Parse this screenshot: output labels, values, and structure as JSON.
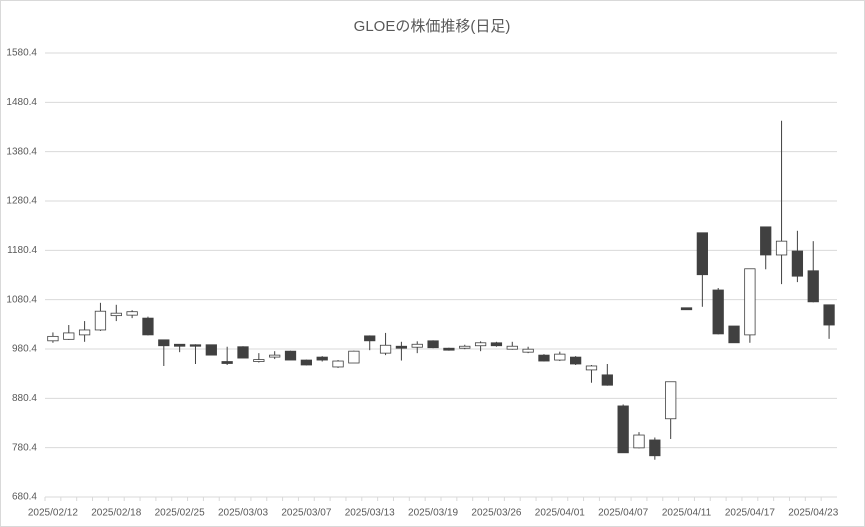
{
  "chart_data": {
    "type": "candlestick",
    "title": "GLOEの株価推移(日足)",
    "categories": [
      "2025/02/12",
      null,
      null,
      null,
      "2025/02/18",
      null,
      null,
      null,
      "2025/02/25",
      null,
      null,
      null,
      "2025/03/03",
      null,
      null,
      null,
      "2025/03/07",
      null,
      null,
      null,
      "2025/03/13",
      null,
      null,
      null,
      "2025/03/19",
      null,
      null,
      null,
      "2025/03/26",
      null,
      null,
      null,
      "2025/04/01",
      null,
      null,
      null,
      "2025/04/07",
      null,
      null,
      null,
      "2025/04/11",
      null,
      null,
      null,
      "2025/04/17",
      null,
      null,
      null,
      "2025/04/23",
      null
    ],
    "open": [
      997,
      1000,
      1009,
      1019,
      1048,
      1049,
      1043,
      999,
      990,
      989,
      989,
      955,
      985,
      955,
      964,
      976,
      958,
      964,
      944,
      952,
      1007,
      972,
      986,
      984,
      997,
      982,
      982,
      987,
      993,
      980,
      974,
      968,
      958,
      964,
      938,
      928,
      865,
      780,
      796,
      839,
      1064,
      1216,
      1100,
      1027,
      1009,
      1228,
      1171,
      1179,
      1139,
      1070
    ],
    "high": [
      1014,
      1029,
      1037,
      1074,
      1070,
      1059,
      1046,
      999,
      990,
      990,
      989,
      985,
      986,
      972,
      976,
      977,
      959,
      966,
      958,
      977,
      1008,
      1013,
      995,
      996,
      998,
      983,
      989,
      996,
      995,
      995,
      985,
      970,
      975,
      966,
      948,
      950,
      868,
      812,
      801,
      914,
      1064,
      1216,
      1104,
      1027,
      1143,
      1228,
      1443,
      1220,
      1199,
      1070
    ],
    "low": [
      993,
      999,
      995,
      1017,
      1037,
      1043,
      1008,
      946,
      974,
      950,
      968,
      948,
      962,
      953,
      960,
      958,
      947,
      955,
      942,
      952,
      978,
      968,
      957,
      972,
      982,
      977,
      980,
      976,
      985,
      979,
      972,
      955,
      956,
      948,
      912,
      906,
      770,
      779,
      756,
      798,
      1060,
      1066,
      1010,
      993,
      993,
      1142,
      1112,
      1116,
      1075,
      1001
    ],
    "close": [
      1006,
      1013,
      1019,
      1057,
      1053,
      1056,
      1009,
      987,
      986,
      986,
      968,
      951,
      962,
      959,
      968,
      958,
      948,
      958,
      956,
      976,
      997,
      988,
      982,
      990,
      983,
      978,
      986,
      993,
      987,
      986,
      980,
      956,
      970,
      950,
      946,
      907,
      770,
      806,
      764,
      914,
      1060,
      1131,
      1011,
      993,
      1143,
      1171,
      1199,
      1128,
      1076,
      1029
    ],
    "up_color": "#ffffff",
    "down_color": "#404040",
    "edge_color": "#404040",
    "ylim": [
      680.4,
      1580.4
    ],
    "yticks": [
      680.4,
      780.4,
      880.4,
      980.4,
      1080.4,
      1180.4,
      1280.4,
      1380.4,
      1480.4,
      1580.4
    ],
    "grid": true
  }
}
